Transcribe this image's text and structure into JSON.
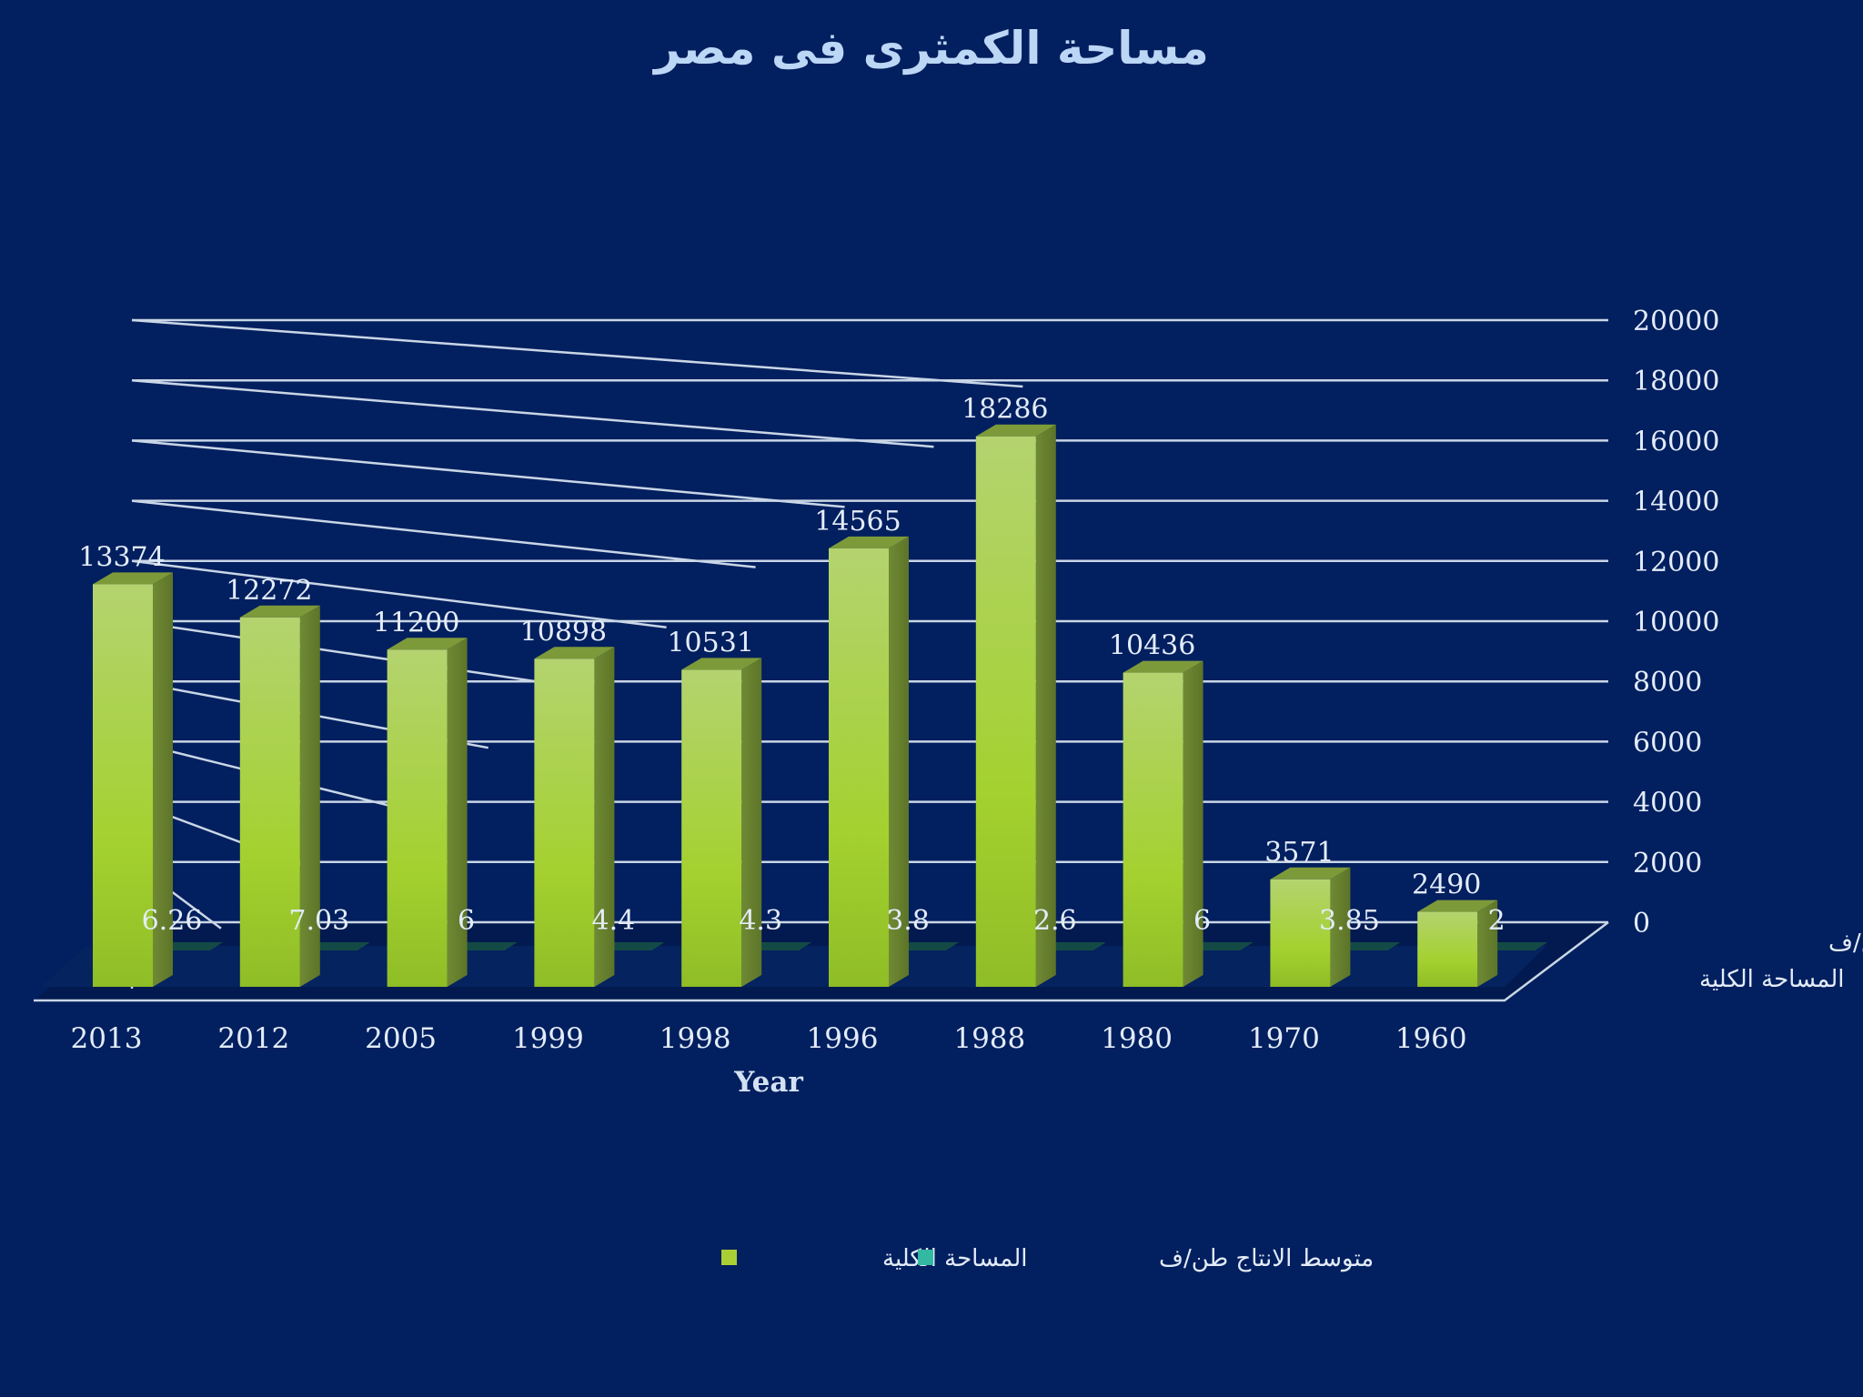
{
  "chart_data": {
    "type": "bar",
    "title": "مساحة الكمثرى فى مصر",
    "xlabel": "Year",
    "categories": [
      "2013",
      "2012",
      "2005",
      "1999",
      "1998",
      "1996",
      "1988",
      "1980",
      "1970",
      "1960"
    ],
    "series": [
      {
        "name": "المساحة الكلية",
        "values": [
          13374,
          12272,
          11200,
          10898,
          10531,
          14565,
          18286,
          10436,
          3571,
          2490
        ],
        "color": "#a9cf34"
      },
      {
        "name": "متوسط الانتاج طن/ف",
        "values": [
          6.26,
          7.03,
          6,
          4.4,
          4.3,
          3.8,
          2.6,
          6,
          3.85,
          2
        ],
        "color": "#33b9a2"
      }
    ],
    "y_ticks": [
      "0",
      "2000",
      "4000",
      "6000",
      "8000",
      "10000",
      "12000",
      "14000",
      "16000",
      "18000",
      "20000"
    ],
    "ylim": [
      0,
      20000
    ],
    "chart_style": "3d-clustered-column",
    "grid": true,
    "legend_position": "bottom"
  }
}
